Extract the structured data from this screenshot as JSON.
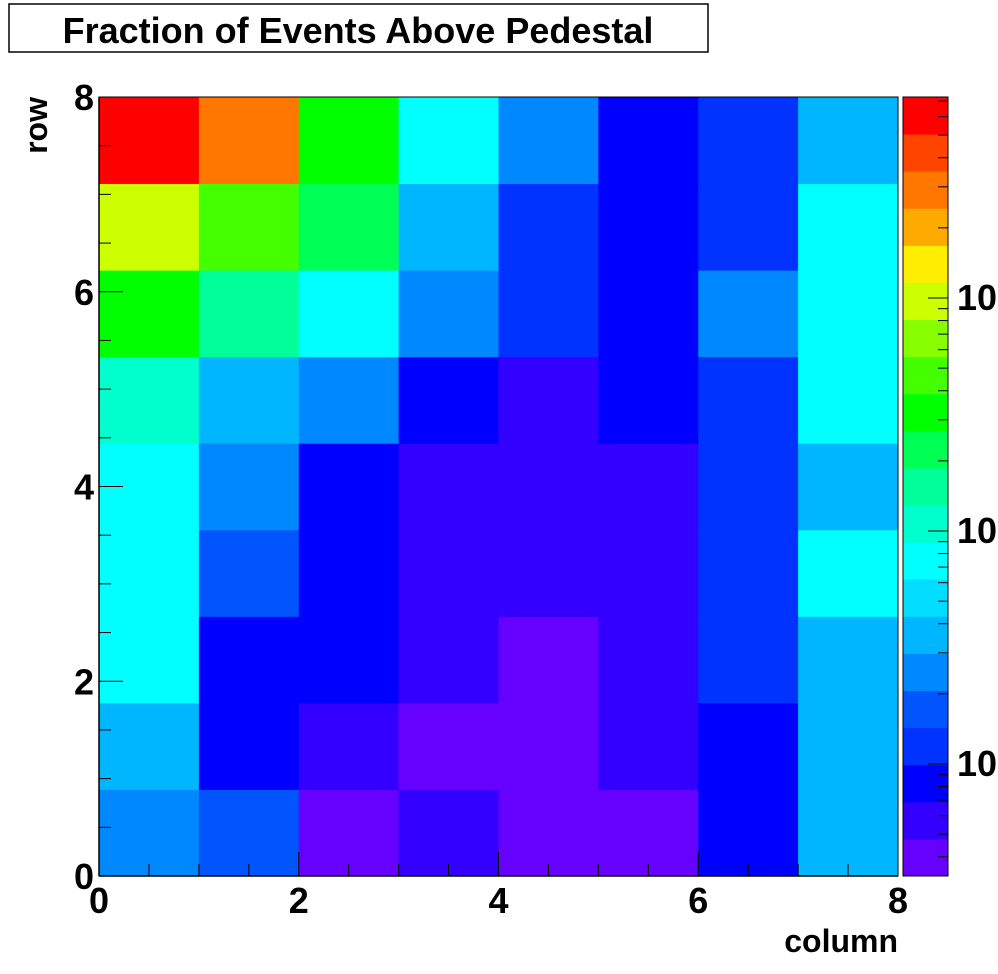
{
  "chart_data": {
    "type": "heatmap",
    "title": "Fraction of Events Above Pedestal",
    "xlabel": "column",
    "ylabel": "row",
    "xlim": [
      0,
      8
    ],
    "ylim": [
      0,
      8
    ],
    "x_ticks": [
      "0",
      "2",
      "4",
      "6",
      "8"
    ],
    "y_ticks": [
      "0",
      "2",
      "4",
      "6",
      "8"
    ],
    "colorbar_labels": [
      "10",
      "10",
      "10"
    ],
    "palette": [
      "#6600ff",
      "#3300ff",
      "#0000ff",
      "#0033ff",
      "#0055ff",
      "#0088ff",
      "#00b6ff",
      "#00ddff",
      "#00ffff",
      "#00ffcc",
      "#00ff99",
      "#00ff55",
      "#00ff00",
      "#44ff00",
      "#88ff00",
      "#ccff00",
      "#ffee00",
      "#ffaa00",
      "#ff7700",
      "#ff4400",
      "#ff0000"
    ],
    "color_levels": [
      [
        5,
        4,
        0,
        1,
        0,
        0,
        2,
        6
      ],
      [
        6,
        2,
        1,
        0,
        0,
        1,
        2,
        6
      ],
      [
        8,
        2,
        2,
        1,
        0,
        1,
        3,
        6
      ],
      [
        8,
        4,
        2,
        1,
        1,
        1,
        3,
        8
      ],
      [
        8,
        5,
        2,
        1,
        1,
        1,
        3,
        6
      ],
      [
        9,
        6,
        5,
        2,
        1,
        2,
        3,
        8
      ],
      [
        12,
        10,
        8,
        5,
        3,
        2,
        5,
        8
      ],
      [
        15,
        13,
        11,
        6,
        3,
        2,
        3,
        8
      ],
      [
        20,
        18,
        12,
        8,
        5,
        2,
        3,
        6
      ]
    ]
  }
}
